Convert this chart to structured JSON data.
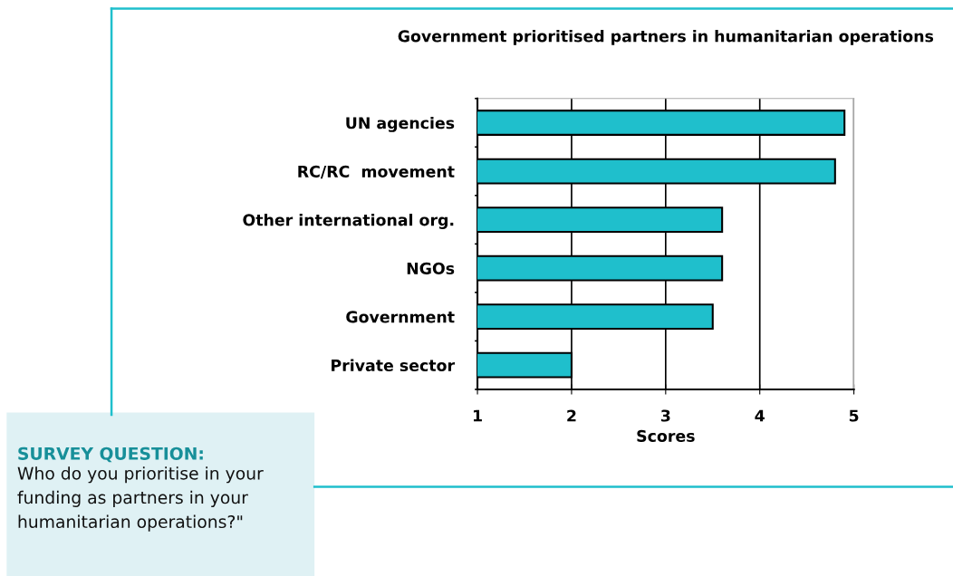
{
  "chart_data": {
    "type": "bar",
    "orientation": "horizontal",
    "title": "Government prioritised partners in humanitarian operations",
    "xlabel": "Scores",
    "categories": [
      "UN agencies",
      "RC/RC  movement",
      "Other international org.",
      "NGOs",
      "Government",
      "Private sector"
    ],
    "values": [
      4.9,
      4.8,
      3.6,
      3.6,
      3.5,
      2.0
    ],
    "color": "#1fbfcc",
    "xlim": [
      1,
      5
    ],
    "xticks": [
      1,
      2,
      3,
      4,
      5
    ],
    "grid": "x",
    "legend": false,
    "annotations": [
      "SURVEY QUESTION:",
      "Who do you prioritise in your\nfunding as partners in your\nhumanitarian operations?\""
    ]
  }
}
